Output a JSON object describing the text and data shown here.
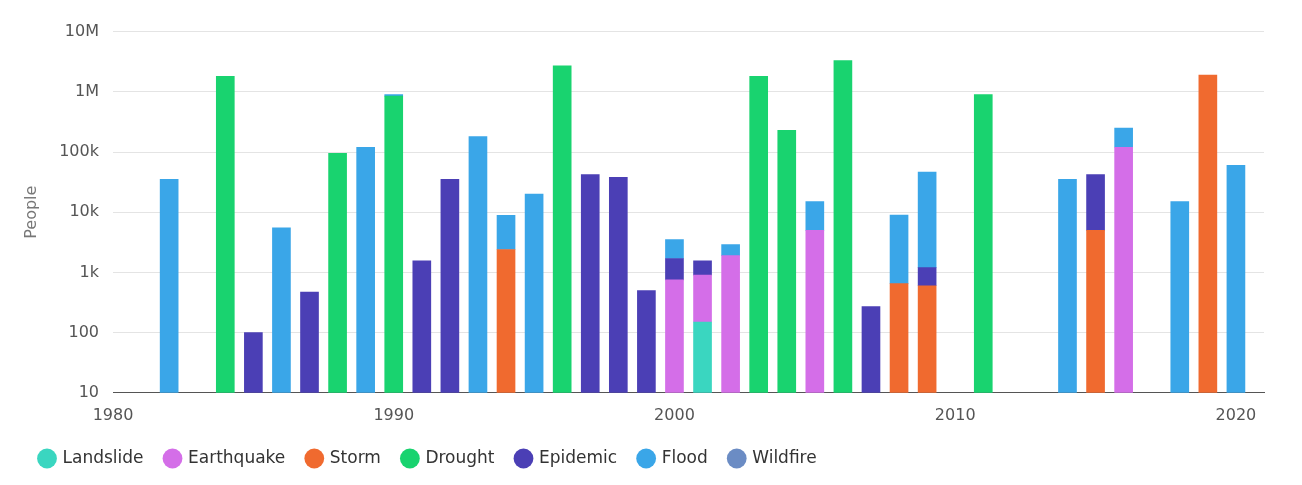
{
  "chart_data": {
    "type": "bar",
    "stacked": true,
    "log": "y",
    "ylabel": "People",
    "x": [
      1982,
      1984,
      1985,
      1986,
      1987,
      1988,
      1989,
      1990,
      1991,
      1992,
      1993,
      1994,
      1995,
      1996,
      1997,
      1998,
      1999,
      2000,
      2001,
      2002,
      2003,
      2004,
      2005,
      2006,
      2007,
      2008,
      2009,
      2011,
      2014,
      2015,
      2016,
      2018,
      2019,
      2020
    ],
    "xlim": [
      1980,
      2021
    ],
    "xticks": [
      1980,
      1990,
      2000,
      2010,
      2020
    ],
    "ylim": [
      10,
      10000000
    ],
    "yticks": [
      10,
      100,
      {
        "value": 1000,
        "label": "1k"
      },
      {
        "value": 10000,
        "label": "10k"
      },
      {
        "value": 100000,
        "label": "100k"
      },
      {
        "value": 1000000,
        "label": "1M"
      },
      {
        "value": 10000000,
        "label": "10M"
      }
    ],
    "grid": "y",
    "legend": "bottom",
    "series": [
      {
        "name": "Landslide",
        "color": "#3ad6c0",
        "values": [
          null,
          null,
          null,
          null,
          null,
          null,
          null,
          null,
          null,
          null,
          null,
          null,
          null,
          null,
          null,
          null,
          null,
          null,
          150,
          null,
          null,
          null,
          null,
          null,
          null,
          null,
          null,
          null,
          null,
          null,
          null,
          null,
          null,
          null
        ]
      },
      {
        "name": "Earthquake",
        "color": "#d46ee8",
        "values": [
          null,
          null,
          null,
          null,
          null,
          null,
          null,
          null,
          null,
          null,
          null,
          null,
          null,
          null,
          null,
          null,
          null,
          750,
          750,
          1900,
          null,
          null,
          5000,
          null,
          null,
          null,
          null,
          null,
          null,
          null,
          120000,
          null,
          null,
          null
        ]
      },
      {
        "name": "Storm",
        "color": "#f06a2f",
        "values": [
          null,
          null,
          null,
          null,
          null,
          null,
          null,
          null,
          null,
          null,
          null,
          2400,
          null,
          null,
          null,
          null,
          null,
          null,
          null,
          null,
          null,
          null,
          null,
          null,
          null,
          650,
          600,
          null,
          null,
          5000,
          null,
          null,
          1900000,
          null
        ]
      },
      {
        "name": "Drought",
        "color": "#19d36f",
        "values": [
          null,
          1800000,
          null,
          null,
          null,
          95000,
          null,
          850000,
          null,
          null,
          null,
          null,
          null,
          2700000,
          null,
          null,
          null,
          null,
          null,
          null,
          1800000,
          230000,
          null,
          3300000,
          null,
          null,
          null,
          900000,
          null,
          null,
          null,
          null,
          null,
          null
        ]
      },
      {
        "name": "Epidemic",
        "color": "#4b3fb5",
        "values": [
          null,
          null,
          100,
          null,
          470,
          null,
          null,
          null,
          1550,
          35000,
          null,
          null,
          null,
          null,
          42000,
          38000,
          500,
          950,
          650,
          null,
          null,
          null,
          null,
          null,
          270,
          null,
          600,
          null,
          null,
          37000,
          null,
          null,
          null,
          null
        ]
      },
      {
        "name": "Flood",
        "color": "#3aa6e8",
        "values": [
          35000,
          null,
          null,
          5500,
          null,
          null,
          120000,
          50000,
          null,
          null,
          180000,
          6500,
          20000,
          null,
          null,
          null,
          null,
          1800,
          null,
          1000,
          null,
          null,
          10000,
          null,
          null,
          8300,
          45000,
          null,
          35000,
          null,
          130000,
          15000,
          null,
          60000
        ]
      },
      {
        "name": "Wildfire",
        "color": "#6b8cc4",
        "values": [
          null,
          null,
          null,
          null,
          null,
          null,
          null,
          null,
          null,
          null,
          null,
          null,
          null,
          null,
          null,
          null,
          null,
          null,
          null,
          null,
          null,
          null,
          null,
          null,
          null,
          null,
          null,
          null,
          null,
          null,
          null,
          null,
          null,
          null
        ]
      }
    ]
  }
}
